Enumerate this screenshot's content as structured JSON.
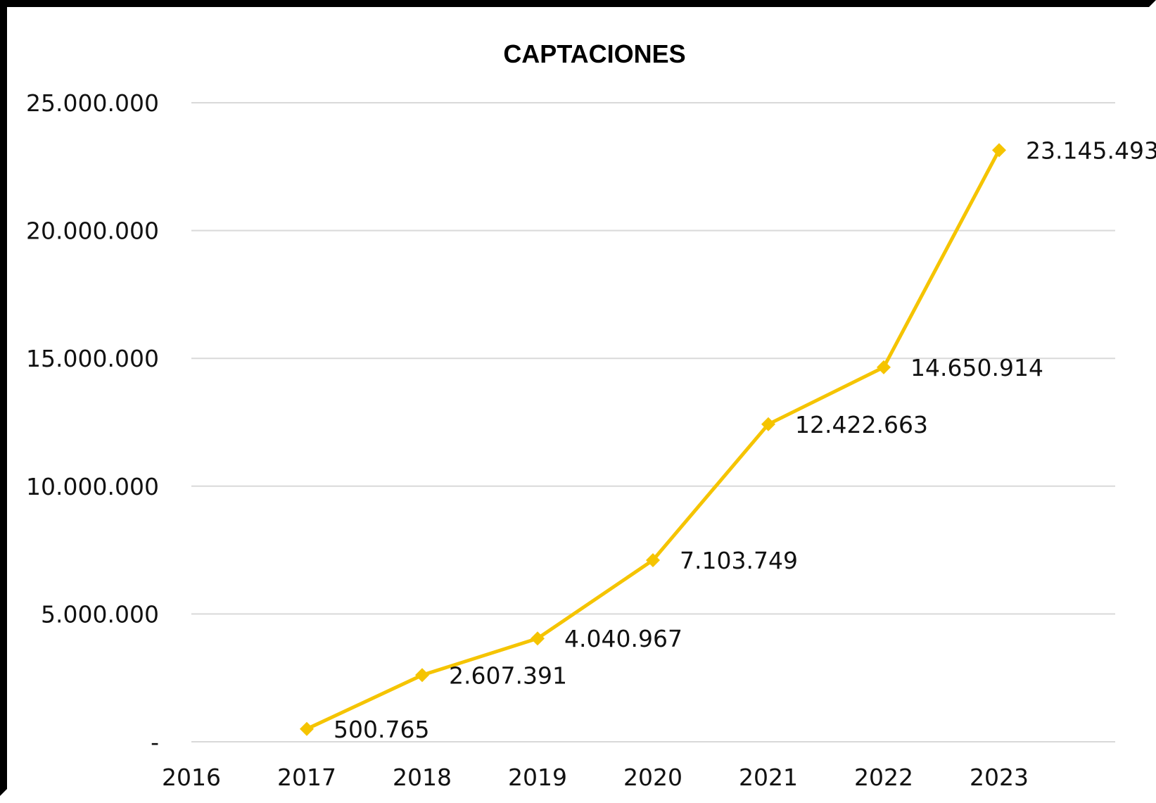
{
  "chart_data": {
    "type": "line",
    "title": "CAPTACIONES",
    "xlabel": "",
    "ylabel": "",
    "x_ticks": [
      "2016",
      "2017",
      "2018",
      "2019",
      "2020",
      "2021",
      "2022",
      "2023"
    ],
    "y_ticks": [
      {
        "value": 0,
        "label": "-"
      },
      {
        "value": 5000000,
        "label": "5.000.000"
      },
      {
        "value": 10000000,
        "label": "10.000.000"
      },
      {
        "value": 15000000,
        "label": "15.000.000"
      },
      {
        "value": 20000000,
        "label": "20.000.000"
      },
      {
        "value": 25000000,
        "label": "25.000.000"
      }
    ],
    "ylim": [
      0,
      25000000
    ],
    "grid": true,
    "legend": "none",
    "series": [
      {
        "color": "#F5C400",
        "marker": "diamond",
        "points": [
          {
            "x": "2017",
            "y": 500765,
            "label": "500.765"
          },
          {
            "x": "2018",
            "y": 2607391,
            "label": "2.607.391"
          },
          {
            "x": "2019",
            "y": 4040967,
            "label": "4.040.967"
          },
          {
            "x": "2020",
            "y": 7103749,
            "label": "7.103.749"
          },
          {
            "x": "2021",
            "y": 12422663,
            "label": "12.422.663"
          },
          {
            "x": "2022",
            "y": 14650914,
            "label": "14.650.914"
          },
          {
            "x": "2023",
            "y": 23145493,
            "label": "23.145.493"
          }
        ]
      }
    ]
  }
}
